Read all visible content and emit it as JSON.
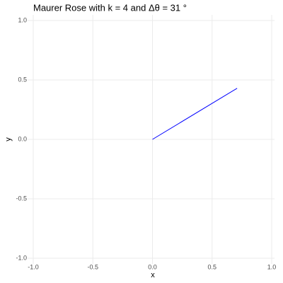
{
  "chart_data": {
    "type": "line",
    "title": "Maurer Rose with k = 4 and Δθ = 31 °",
    "x_label": "x",
    "y_label": "y",
    "series": [
      {
        "color": "#0000ff",
        "x": [
          0,
          0.71
        ],
        "values": [
          0,
          0.43
        ]
      }
    ],
    "xlim": [
      -1,
      1
    ],
    "ylim": [
      -1,
      1
    ],
    "xticks": [
      {
        "value": -1,
        "label": "-1.0"
      },
      -0.5,
      {
        "value": 0,
        "label": "0.0"
      },
      0.5,
      {
        "value": 1,
        "label": "1.0"
      }
    ],
    "yticks": [
      {
        "value": -1,
        "label": "-1.0"
      },
      -0.5,
      {
        "value": 0,
        "label": "0.0"
      },
      0.5,
      {
        "value": 1,
        "label": "1.0"
      }
    ],
    "grid": true
  }
}
